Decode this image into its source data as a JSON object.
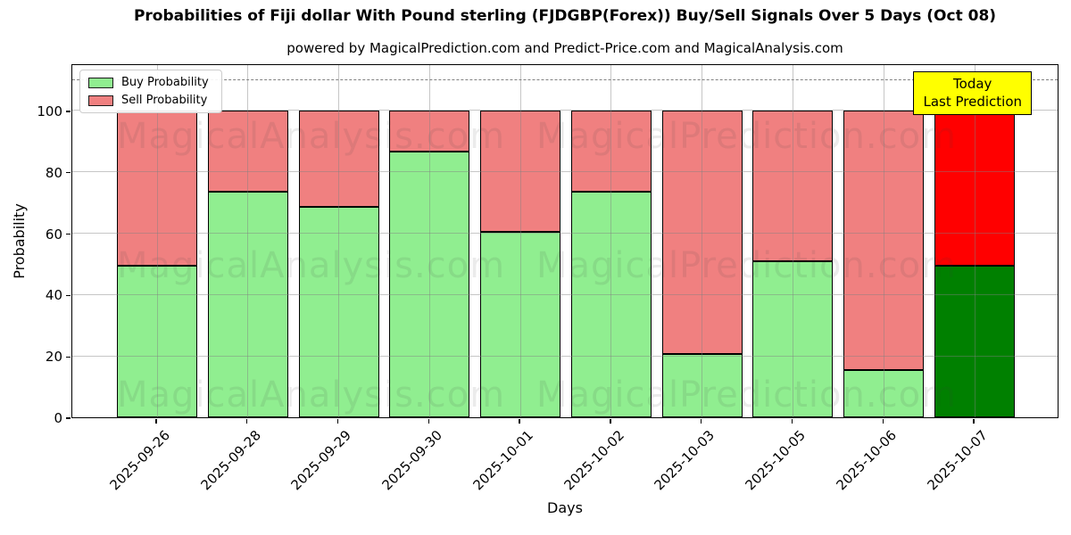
{
  "annotation": {
    "line1": "Today",
    "line2": "Last Prediction"
  },
  "watermarks": [
    "MagicalAnalysis.com",
    "MagicalPrediction.com"
  ],
  "colors": {
    "buy": "#90EE90",
    "sell": "#F08080",
    "buy_last": "#008000",
    "sell_last": "#FF0000",
    "bar_edge": "#000000",
    "annotation_bg": "#FFFF00",
    "grid": "#808080"
  },
  "chart_data": {
    "type": "bar",
    "stacked": true,
    "title": "Probabilities of Fiji dollar With Pound sterling (FJDGBP(Forex)) Buy/Sell Signals Over 5 Days (Oct 08)",
    "subtitle": "powered by MagicalPrediction.com and Predict-Price.com and MagicalAnalysis.com",
    "xlabel": "Days",
    "ylabel": "Probability",
    "categories": [
      "2025-09-26",
      "2025-09-28",
      "2025-09-29",
      "2025-09-30",
      "2025-10-01",
      "2025-10-02",
      "2025-10-03",
      "2025-10-05",
      "2025-10-06",
      "2025-10-07"
    ],
    "series": [
      {
        "name": "Buy Probability",
        "values": [
          49.5,
          73.5,
          68.5,
          86.5,
          60.5,
          73.5,
          20.5,
          51,
          15.5,
          49.5
        ]
      },
      {
        "name": "Sell Probability",
        "values": [
          50.5,
          26.5,
          31.5,
          13.5,
          39.5,
          26.5,
          79.5,
          49,
          84.5,
          50.5
        ]
      }
    ],
    "yticks": [
      0,
      20,
      40,
      60,
      80,
      100
    ],
    "ylim": [
      0,
      115.4
    ],
    "dashed_hline_y": 110,
    "grid": true,
    "legend_position": "upper left",
    "highlight_last_bar": true
  }
}
